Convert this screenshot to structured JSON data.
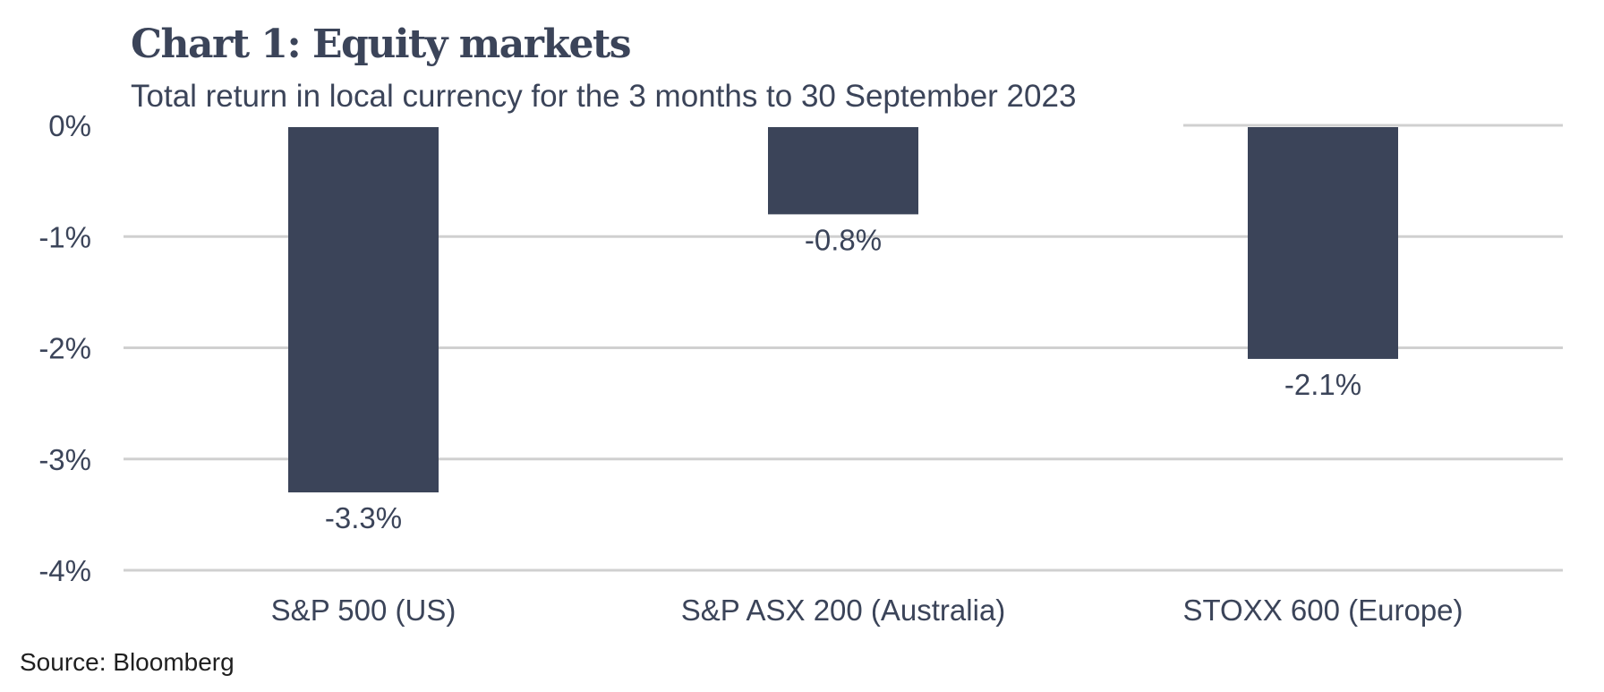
{
  "chart_data": {
    "type": "bar",
    "title": "Chart 1: Equity markets",
    "subtitle": "Total return in local currency for the 3 months to 30 September 2023",
    "categories": [
      "S&P 500 (US)",
      "S&P ASX 200 (Australia)",
      "STOXX 600 (Europe)"
    ],
    "values": [
      -3.3,
      -0.8,
      -2.1
    ],
    "data_labels": [
      "-3.3%",
      "-0.8%",
      "-2.1%"
    ],
    "ylim": [
      -4,
      0
    ],
    "yticks": [
      0,
      -1,
      -2,
      -3,
      -4
    ],
    "ytick_labels": [
      "0%",
      "-1%",
      "-2%",
      "-3%",
      "-4%"
    ],
    "xlabel": "",
    "ylabel": "",
    "grid": true,
    "legend": "none",
    "bar_color": "#3b4459",
    "grid_color": "#d0d0d0"
  },
  "source": "Source: Bloomberg"
}
